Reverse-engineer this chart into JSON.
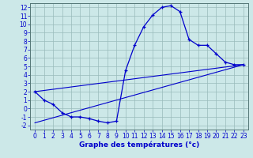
{
  "title": "",
  "xlabel": "Graphe des températures (°c)",
  "ylabel": "",
  "bg_color": "#cce8e8",
  "line_color": "#0000cc",
  "grid_color": "#99bbbb",
  "xlim": [
    -0.5,
    23.5
  ],
  "ylim": [
    -2.5,
    12.5
  ],
  "xticks": [
    0,
    1,
    2,
    3,
    4,
    5,
    6,
    7,
    8,
    9,
    10,
    11,
    12,
    13,
    14,
    15,
    16,
    17,
    18,
    19,
    20,
    21,
    22,
    23
  ],
  "yticks": [
    -2,
    -1,
    0,
    1,
    2,
    3,
    4,
    5,
    6,
    7,
    8,
    9,
    10,
    11,
    12
  ],
  "curve1_x": [
    0,
    1,
    2,
    3,
    4,
    5,
    6,
    7,
    8,
    9,
    10,
    11,
    12,
    13,
    14,
    15,
    16,
    17,
    18,
    19,
    20,
    21,
    22,
    23
  ],
  "curve1_y": [
    2.0,
    1.0,
    0.5,
    -0.5,
    -1.0,
    -1.0,
    -1.2,
    -1.5,
    -1.7,
    -1.5,
    4.5,
    7.5,
    9.7,
    11.1,
    12.0,
    12.2,
    11.5,
    8.2,
    7.5,
    7.5,
    6.5,
    5.5,
    5.2,
    5.2
  ],
  "curve2_x": [
    0,
    23
  ],
  "curve2_y": [
    2.0,
    5.2
  ],
  "curve3_x": [
    0,
    23
  ],
  "curve3_y": [
    -1.7,
    5.2
  ],
  "tick_fontsize": 5.5,
  "xlabel_fontsize": 6.5,
  "xlabel_bold": true
}
